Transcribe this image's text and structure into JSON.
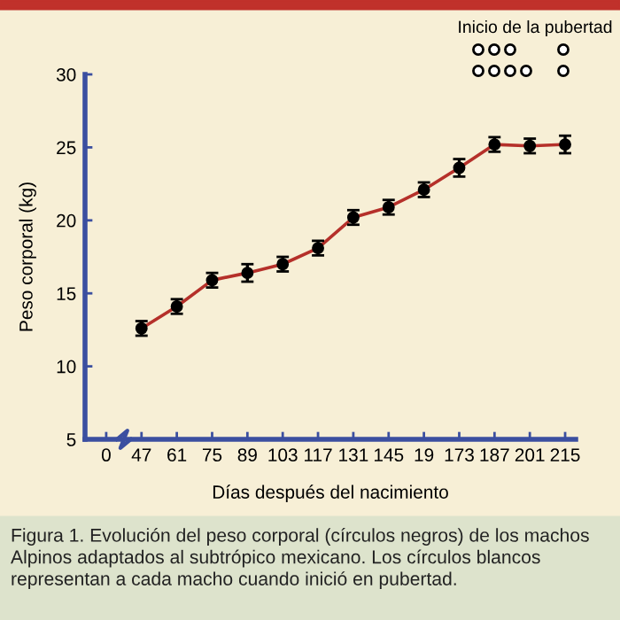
{
  "chart_data": {
    "type": "line",
    "xlabel": "Días después del nacimiento",
    "ylabel": "Peso corporal (kg)",
    "categories": [
      "0",
      "47",
      "61",
      "75",
      "89",
      "103",
      "117",
      "131",
      "145",
      "19",
      "173",
      "187",
      "201",
      "215"
    ],
    "series": [
      {
        "color": "#b5302a",
        "values": [
          null,
          12.6,
          14.1,
          15.9,
          16.4,
          17.0,
          18.1,
          20.2,
          20.9,
          22.1,
          23.6,
          25.2,
          25.1,
          25.2
        ],
        "errors": [
          null,
          0.5,
          0.5,
          0.5,
          0.6,
          0.5,
          0.5,
          0.5,
          0.5,
          0.5,
          0.6,
          0.5,
          0.5,
          0.6
        ]
      }
    ],
    "ylim": [
      5,
      30
    ],
    "yticks": [
      5,
      10,
      15,
      20,
      25,
      30
    ],
    "grid": false,
    "legend": false,
    "marker": "circle",
    "line_style": "solid",
    "annotations": [
      "Inicio de la pubertad",
      "Figura 1. Evolución del peso corporal (círculos negros) de los machos Alpinos adaptados al subtrópico mexicano. Los círculos blancos representan a cada macho cuando inició en pubertad."
    ]
  }
}
